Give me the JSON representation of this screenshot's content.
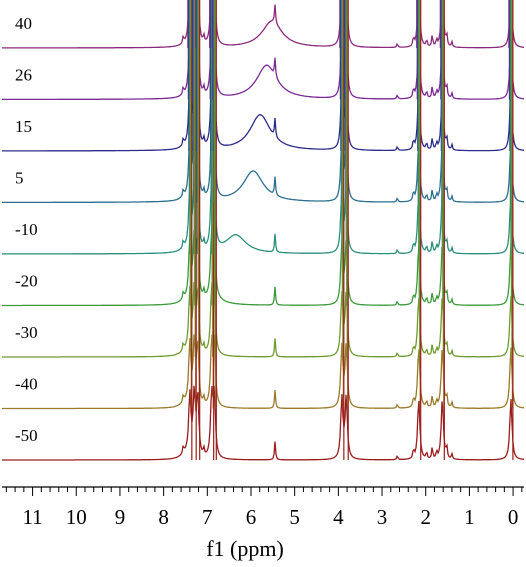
{
  "chart_data": {
    "type": "line",
    "title": "",
    "xlabel": "f1 (ppm)",
    "ylabel": "",
    "x_reversed": true,
    "xlim": [
      11.7,
      -0.25
    ],
    "x_ticks": [
      11,
      10,
      9,
      8,
      7,
      6,
      5,
      4,
      3,
      2,
      1,
      0
    ],
    "grid": false,
    "legend": "none",
    "series_style": "stacked spectra, one trace per temperature, labels at left",
    "peaks_ppm": [
      {
        "shift": 7.55,
        "height": 0.07
      },
      {
        "shift": 7.4,
        "height": 0.6
      },
      {
        "shift": 7.3,
        "height": 0.6
      },
      {
        "shift": 7.22,
        "height": 0.6
      },
      {
        "shift": 7.08,
        "height": 0.07
      },
      {
        "shift": 6.9,
        "height": 0.6
      },
      {
        "shift": 6.84,
        "height": 0.6
      },
      {
        "shift": 5.45,
        "height": 0.18
      },
      {
        "shift": 3.92,
        "height": 0.6
      },
      {
        "shift": 3.82,
        "height": 0.6
      },
      {
        "shift": 2.65,
        "height": 0.04
      },
      {
        "shift": 2.28,
        "height": 0.09
      },
      {
        "shift": 2.16,
        "height": 0.6
      },
      {
        "shift": 1.98,
        "height": 0.07
      },
      {
        "shift": 1.85,
        "height": 0.12
      },
      {
        "shift": 1.75,
        "height": 0.07
      },
      {
        "shift": 1.62,
        "height": 0.6
      },
      {
        "shift": 1.52,
        "height": 0.12
      },
      {
        "shift": 1.4,
        "height": 0.05
      },
      {
        "shift": 0.05,
        "height": 0.6
      }
    ],
    "series": [
      {
        "name": "40",
        "color": "#8b2a7b",
        "broad_peak_ppm": 5.52,
        "broad_peak_height": 0.78
      },
      {
        "name": "26",
        "color": "#7a2a94",
        "broad_peak_ppm": 5.64,
        "broad_peak_height": 1.0
      },
      {
        "name": "15",
        "color": "#2b2b8a",
        "broad_peak_ppm": 5.79,
        "broad_peak_height": 1.06
      },
      {
        "name": "5",
        "color": "#2c6f8f",
        "broad_peak_ppm": 5.95,
        "broad_peak_height": 0.92
      },
      {
        "name": "-10",
        "color": "#2a8f7a",
        "broad_peak_ppm": 6.35,
        "broad_peak_height": 0.55
      },
      {
        "name": "-20",
        "color": "#3c9a3c",
        "broad_peak_ppm": 6.9,
        "broad_peak_height": 0.18
      },
      {
        "name": "-30",
        "color": "#6f9a32",
        "broad_peak_ppm": 7.2,
        "broad_peak_height": 0.04
      },
      {
        "name": "-40",
        "color": "#9a7a2a",
        "broad_peak_ppm": 7.3,
        "broad_peak_height": 0.0
      },
      {
        "name": "-50",
        "color": "#9a1c1c",
        "broad_peak_ppm": 7.3,
        "broad_peak_height": 0.0
      }
    ]
  }
}
